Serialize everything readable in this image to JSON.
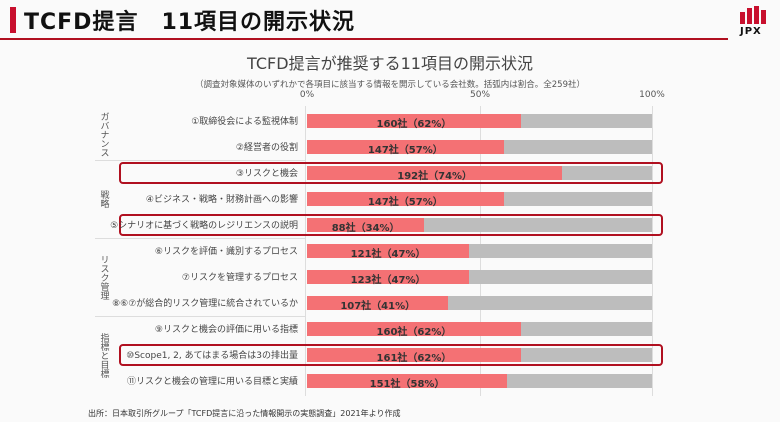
{
  "header": {
    "title": "TCFD提言　11項目の開示状況",
    "logo_text": "JPX"
  },
  "chart_data": {
    "type": "bar",
    "orientation": "horizontal",
    "stacked_to_100": true,
    "title": "TCFD提言が推奨する11項目の開示状況",
    "subtitle": "（調査対象媒体のいずれかで各項目に該当する情報を開示している会社数。括弧内は割合。全259社）",
    "xlim": [
      0,
      100
    ],
    "xticks": [
      "0%",
      "50%",
      "100%"
    ],
    "groups": [
      {
        "name": "ガバナンス",
        "rows": [
          0,
          1
        ]
      },
      {
        "name": "戦略",
        "rows": [
          2,
          3,
          4
        ]
      },
      {
        "name": "リスク管理",
        "rows": [
          5,
          6,
          7
        ]
      },
      {
        "name": "指標と目標",
        "rows": [
          8,
          9,
          10
        ]
      }
    ],
    "categories": [
      "①取締役会による監視体制",
      "②経営者の役割",
      "③リスクと機会",
      "④ビジネス・戦略・財務計画への影響",
      "⑤シナリオに基づく戦略のレジリエンスの説明",
      "⑥リスクを評価・識別するプロセス",
      "⑦リスクを管理するプロセス",
      "⑧⑥⑦が総合的リスク管理に統合されているか",
      "⑨リスクと機会の評価に用いる指標",
      "⑩Scope1, 2, あてはまる場合は3の排出量",
      "⑪リスクと機会の管理に用いる目標と実績"
    ],
    "values": [
      62,
      57,
      74,
      57,
      34,
      47,
      47,
      41,
      62,
      62,
      58
    ],
    "data_labels": [
      "160社（62%）",
      "147社（57%）",
      "192社（74%）",
      "147社（57%）",
      "88社（34%）",
      "121社（47%）",
      "123社（47%）",
      "107社（41%）",
      "160社（62%）",
      "161社（62%）",
      "151社（58%）"
    ],
    "highlighted": [
      2,
      4,
      9
    ],
    "colors": {
      "disclosed": "#f47174",
      "remaining": "#bdbdbd",
      "highlight": "#b01020"
    }
  },
  "source": "出所：日本取引所グループ「TCFD提言に沿った情報開示の実態調査」2021年より作成"
}
